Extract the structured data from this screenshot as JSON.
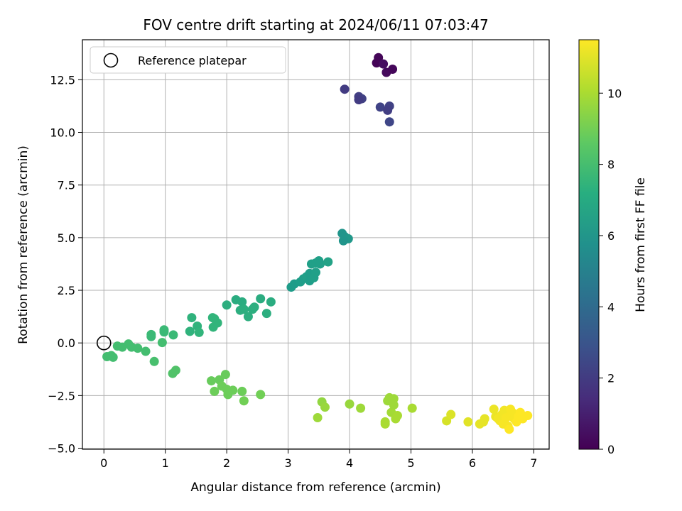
{
  "chart_data": {
    "type": "scatter",
    "title": "FOV centre drift starting at 2024/06/11 07:03:47",
    "xlabel": "Angular distance from reference (arcmin)",
    "ylabel": "Rotation from reference (arcmin)",
    "colorbar_label": "Hours from first FF file",
    "xlim": [
      -0.35,
      7.25
    ],
    "ylim": [
      -5.05,
      14.4
    ],
    "xticks": [
      0,
      1,
      2,
      3,
      4,
      5,
      6,
      7
    ],
    "xtick_labels": [
      "0",
      "1",
      "2",
      "3",
      "4",
      "5",
      "6",
      "7"
    ],
    "yticks": [
      -5.0,
      -2.5,
      0.0,
      2.5,
      5.0,
      7.5,
      10.0,
      12.5
    ],
    "ytick_labels": [
      "−5.0",
      "−2.5",
      "0.0",
      "2.5",
      "5.0",
      "7.5",
      "10.0",
      "12.5"
    ],
    "cbar_range": [
      0,
      11.5
    ],
    "cbar_ticks": [
      0,
      2,
      4,
      6,
      8,
      10
    ],
    "cbar_tick_labels": [
      "0",
      "2",
      "4",
      "6",
      "8",
      "10"
    ],
    "colormap": "viridis",
    "grid": true,
    "legend_position": "top-left",
    "legend": [
      {
        "label": "Reference platepar",
        "marker": "open-circle",
        "color": "#000000"
      }
    ],
    "reference_point": {
      "x": 0,
      "y": 0
    },
    "points": [
      {
        "x": 4.44,
        "y": 13.3,
        "t": 0.1
      },
      {
        "x": 4.47,
        "y": 13.55,
        "t": 0.15
      },
      {
        "x": 4.6,
        "y": 12.85,
        "t": 0.3
      },
      {
        "x": 4.7,
        "y": 13.0,
        "t": 0.2
      },
      {
        "x": 4.55,
        "y": 13.25,
        "t": 0.4
      },
      {
        "x": 3.92,
        "y": 12.05,
        "t": 2.0
      },
      {
        "x": 4.15,
        "y": 11.7,
        "t": 2.1
      },
      {
        "x": 4.2,
        "y": 11.6,
        "t": 2.2
      },
      {
        "x": 4.15,
        "y": 11.55,
        "t": 2.0
      },
      {
        "x": 4.5,
        "y": 11.2,
        "t": 2.3
      },
      {
        "x": 4.65,
        "y": 11.25,
        "t": 2.2
      },
      {
        "x": 4.62,
        "y": 11.05,
        "t": 2.1
      },
      {
        "x": 4.65,
        "y": 10.5,
        "t": 2.4
      },
      {
        "x": 3.88,
        "y": 5.2,
        "t": 6.0
      },
      {
        "x": 3.92,
        "y": 5.05,
        "t": 6.0
      },
      {
        "x": 3.98,
        "y": 4.95,
        "t": 6.1
      },
      {
        "x": 3.9,
        "y": 4.85,
        "t": 6.0
      },
      {
        "x": 3.05,
        "y": 2.65,
        "t": 6.3
      },
      {
        "x": 3.1,
        "y": 2.8,
        "t": 6.3
      },
      {
        "x": 3.2,
        "y": 2.9,
        "t": 6.4
      },
      {
        "x": 3.25,
        "y": 3.05,
        "t": 6.4
      },
      {
        "x": 3.3,
        "y": 3.15,
        "t": 6.5
      },
      {
        "x": 3.35,
        "y": 3.3,
        "t": 6.4
      },
      {
        "x": 3.35,
        "y": 2.95,
        "t": 6.4
      },
      {
        "x": 3.42,
        "y": 3.1,
        "t": 6.5
      },
      {
        "x": 3.45,
        "y": 3.35,
        "t": 6.5
      },
      {
        "x": 3.38,
        "y": 3.75,
        "t": 6.5
      },
      {
        "x": 3.45,
        "y": 3.8,
        "t": 6.5
      },
      {
        "x": 3.5,
        "y": 3.9,
        "t": 6.5
      },
      {
        "x": 3.52,
        "y": 3.75,
        "t": 6.5
      },
      {
        "x": 3.65,
        "y": 3.85,
        "t": 6.6
      },
      {
        "x": 1.43,
        "y": 1.2,
        "t": 7.4
      },
      {
        "x": 1.4,
        "y": 0.55,
        "t": 7.4
      },
      {
        "x": 1.52,
        "y": 0.8,
        "t": 7.4
      },
      {
        "x": 1.55,
        "y": 0.5,
        "t": 7.5
      },
      {
        "x": 1.77,
        "y": 1.2,
        "t": 7.5
      },
      {
        "x": 1.8,
        "y": 1.15,
        "t": 7.5
      },
      {
        "x": 1.85,
        "y": 0.95,
        "t": 7.5
      },
      {
        "x": 1.78,
        "y": 0.75,
        "t": 7.5
      },
      {
        "x": 2.0,
        "y": 1.8,
        "t": 7.2
      },
      {
        "x": 2.15,
        "y": 2.05,
        "t": 7.1
      },
      {
        "x": 2.25,
        "y": 1.95,
        "t": 7.1
      },
      {
        "x": 2.22,
        "y": 1.55,
        "t": 7.2
      },
      {
        "x": 2.28,
        "y": 1.6,
        "t": 7.2
      },
      {
        "x": 2.35,
        "y": 1.25,
        "t": 7.2
      },
      {
        "x": 2.42,
        "y": 1.6,
        "t": 7.2
      },
      {
        "x": 2.45,
        "y": 1.7,
        "t": 7.2
      },
      {
        "x": 2.55,
        "y": 2.1,
        "t": 7.1
      },
      {
        "x": 2.65,
        "y": 1.4,
        "t": 7.2
      },
      {
        "x": 2.72,
        "y": 1.95,
        "t": 7.1
      },
      {
        "x": 0.05,
        "y": -0.65,
        "t": 8.0
      },
      {
        "x": 0.12,
        "y": -0.6,
        "t": 8.0
      },
      {
        "x": 0.15,
        "y": -0.68,
        "t": 8.0
      },
      {
        "x": 0.22,
        "y": -0.15,
        "t": 8.0
      },
      {
        "x": 0.3,
        "y": -0.2,
        "t": 8.0
      },
      {
        "x": 0.4,
        "y": -0.05,
        "t": 8.0
      },
      {
        "x": 0.45,
        "y": -0.2,
        "t": 8.0
      },
      {
        "x": 0.55,
        "y": -0.25,
        "t": 8.0
      },
      {
        "x": 0.68,
        "y": -0.4,
        "t": 8.0
      },
      {
        "x": 0.77,
        "y": 0.4,
        "t": 7.8
      },
      {
        "x": 0.77,
        "y": 0.3,
        "t": 7.8
      },
      {
        "x": 0.82,
        "y": -0.88,
        "t": 8.1
      },
      {
        "x": 0.95,
        "y": 0.02,
        "t": 8.0
      },
      {
        "x": 0.98,
        "y": 0.52,
        "t": 7.8
      },
      {
        "x": 0.98,
        "y": 0.62,
        "t": 7.8
      },
      {
        "x": 1.13,
        "y": 0.38,
        "t": 7.8
      },
      {
        "x": 1.12,
        "y": -1.45,
        "t": 8.3
      },
      {
        "x": 1.17,
        "y": -1.3,
        "t": 8.3
      },
      {
        "x": 1.75,
        "y": -1.8,
        "t": 8.8
      },
      {
        "x": 1.88,
        "y": -1.75,
        "t": 8.8
      },
      {
        "x": 1.8,
        "y": -2.3,
        "t": 8.9
      },
      {
        "x": 1.92,
        "y": -2.05,
        "t": 8.9
      },
      {
        "x": 1.98,
        "y": -1.5,
        "t": 8.8
      },
      {
        "x": 2.0,
        "y": -2.2,
        "t": 8.9
      },
      {
        "x": 2.02,
        "y": -2.45,
        "t": 8.9
      },
      {
        "x": 2.1,
        "y": -2.25,
        "t": 8.9
      },
      {
        "x": 2.25,
        "y": -2.3,
        "t": 8.9
      },
      {
        "x": 2.28,
        "y": -2.75,
        "t": 9.0
      },
      {
        "x": 2.55,
        "y": -2.45,
        "t": 9.0
      },
      {
        "x": 3.48,
        "y": -3.55,
        "t": 9.8
      },
      {
        "x": 3.55,
        "y": -2.8,
        "t": 9.6
      },
      {
        "x": 3.6,
        "y": -3.05,
        "t": 9.7
      },
      {
        "x": 4.0,
        "y": -2.9,
        "t": 9.7
      },
      {
        "x": 4.18,
        "y": -3.1,
        "t": 9.8
      },
      {
        "x": 4.58,
        "y": -3.85,
        "t": 10.0
      },
      {
        "x": 4.58,
        "y": -3.75,
        "t": 10.0
      },
      {
        "x": 4.62,
        "y": -2.75,
        "t": 9.8
      },
      {
        "x": 4.65,
        "y": -2.6,
        "t": 9.8
      },
      {
        "x": 4.68,
        "y": -3.3,
        "t": 9.9
      },
      {
        "x": 4.72,
        "y": -2.65,
        "t": 9.8
      },
      {
        "x": 4.72,
        "y": -2.95,
        "t": 9.8
      },
      {
        "x": 4.75,
        "y": -3.6,
        "t": 10.0
      },
      {
        "x": 4.78,
        "y": -3.45,
        "t": 10.0
      },
      {
        "x": 5.02,
        "y": -3.1,
        "t": 10.0
      },
      {
        "x": 5.58,
        "y": -3.7,
        "t": 10.8
      },
      {
        "x": 5.65,
        "y": -3.4,
        "t": 10.9
      },
      {
        "x": 5.93,
        "y": -3.75,
        "t": 11.0
      },
      {
        "x": 6.12,
        "y": -3.85,
        "t": 11.1
      },
      {
        "x": 6.18,
        "y": -3.75,
        "t": 11.1
      },
      {
        "x": 6.2,
        "y": -3.6,
        "t": 11.1
      },
      {
        "x": 6.35,
        "y": -3.15,
        "t": 11.2
      },
      {
        "x": 6.38,
        "y": -3.5,
        "t": 11.2
      },
      {
        "x": 6.42,
        "y": -3.6,
        "t": 11.3
      },
      {
        "x": 6.45,
        "y": -3.7,
        "t": 11.3
      },
      {
        "x": 6.48,
        "y": -3.4,
        "t": 11.3
      },
      {
        "x": 6.5,
        "y": -3.85,
        "t": 11.4
      },
      {
        "x": 6.52,
        "y": -3.2,
        "t": 11.3
      },
      {
        "x": 6.55,
        "y": -3.55,
        "t": 11.4
      },
      {
        "x": 6.58,
        "y": -3.95,
        "t": 11.4
      },
      {
        "x": 6.6,
        "y": -4.1,
        "t": 11.5
      },
      {
        "x": 6.62,
        "y": -3.15,
        "t": 11.4
      },
      {
        "x": 6.62,
        "y": -3.45,
        "t": 11.4
      },
      {
        "x": 6.65,
        "y": -3.3,
        "t": 11.4
      },
      {
        "x": 6.68,
        "y": -3.6,
        "t": 11.4
      },
      {
        "x": 6.72,
        "y": -3.75,
        "t": 11.5
      },
      {
        "x": 6.75,
        "y": -3.5,
        "t": 11.5
      },
      {
        "x": 6.78,
        "y": -3.3,
        "t": 11.5
      },
      {
        "x": 6.82,
        "y": -3.6,
        "t": 11.5
      },
      {
        "x": 6.9,
        "y": -3.45,
        "t": 11.5
      }
    ]
  }
}
